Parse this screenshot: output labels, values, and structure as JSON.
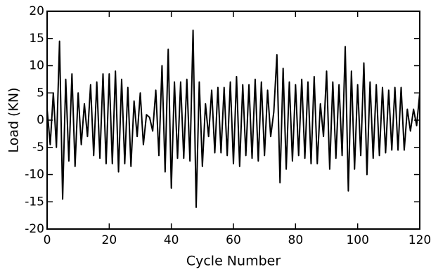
{
  "chart_data": {
    "type": "line",
    "x_label": "Cycle Number",
    "y_label": "Load (KN)",
    "x": [
      0,
      1,
      2,
      3,
      4,
      5,
      6,
      7,
      8,
      9,
      10,
      11,
      12,
      13,
      14,
      15,
      16,
      17,
      18,
      19,
      20,
      21,
      22,
      23,
      24,
      25,
      26,
      27,
      28,
      29,
      30,
      31,
      32,
      33,
      34,
      35,
      36,
      37,
      38,
      39,
      40,
      41,
      42,
      43,
      44,
      45,
      46,
      47,
      48,
      49,
      50,
      51,
      52,
      53,
      54,
      55,
      56,
      57,
      58,
      59,
      60,
      61,
      62,
      63,
      64,
      65,
      66,
      67,
      68,
      69,
      70,
      71,
      72,
      73,
      74,
      75,
      76,
      77,
      78,
      79,
      80,
      81,
      82,
      83,
      84,
      85,
      86,
      87,
      88,
      89,
      90,
      91,
      92,
      93,
      94,
      95,
      96,
      97,
      98,
      99,
      100,
      101,
      102,
      103,
      104,
      105,
      106,
      107,
      108,
      109,
      110,
      111,
      112,
      113,
      114,
      115,
      116,
      117,
      118,
      119,
      120
    ],
    "series": [
      {
        "name": "Load",
        "color": "#000000",
        "values": [
          2,
          -4.5,
          5,
          -5,
          14.5,
          -14.5,
          7.5,
          -7.5,
          8.5,
          -8.5,
          5,
          -4.5,
          3,
          -3,
          6.5,
          -6.5,
          7,
          -7,
          8.5,
          -8,
          8.5,
          -8,
          9,
          -9.5,
          7.5,
          -8,
          6,
          -8.5,
          3.5,
          -3,
          5,
          -4.5,
          1,
          0.5,
          -2,
          5.5,
          -6.5,
          10,
          -9.5,
          13,
          -12.5,
          7,
          -7,
          7,
          -7,
          7.5,
          -7.5,
          16.5,
          -16,
          7,
          -8.5,
          3,
          -3,
          5.5,
          -6,
          6,
          -6,
          6,
          -6.5,
          7,
          -8,
          8,
          -8.5,
          6.5,
          -6.5,
          6.5,
          -7,
          7.5,
          -7.5,
          7,
          -6.5,
          5.5,
          -3,
          1.5,
          12,
          -11.5,
          9.5,
          -9,
          7,
          -7.5,
          6.5,
          -6.5,
          7.5,
          -7,
          7,
          -8,
          8,
          -8,
          3,
          -3,
          9,
          -9,
          7,
          -7,
          6.5,
          -6.5,
          13.5,
          -13,
          9,
          -9,
          6.5,
          -6.5,
          10.5,
          -10,
          7,
          -7,
          6.5,
          -6.5,
          6,
          -6,
          5.5,
          -5.5,
          6,
          -5.5,
          6,
          -5.5,
          2,
          -2,
          2,
          -1,
          5
        ]
      }
    ],
    "xlim": [
      0,
      120
    ],
    "xticks": [
      0,
      20,
      40,
      60,
      80,
      100,
      120
    ],
    "ylim": [
      -20,
      20
    ],
    "yticks": [
      -20,
      -15,
      -10,
      -5,
      0,
      5,
      10,
      15,
      20
    ]
  }
}
